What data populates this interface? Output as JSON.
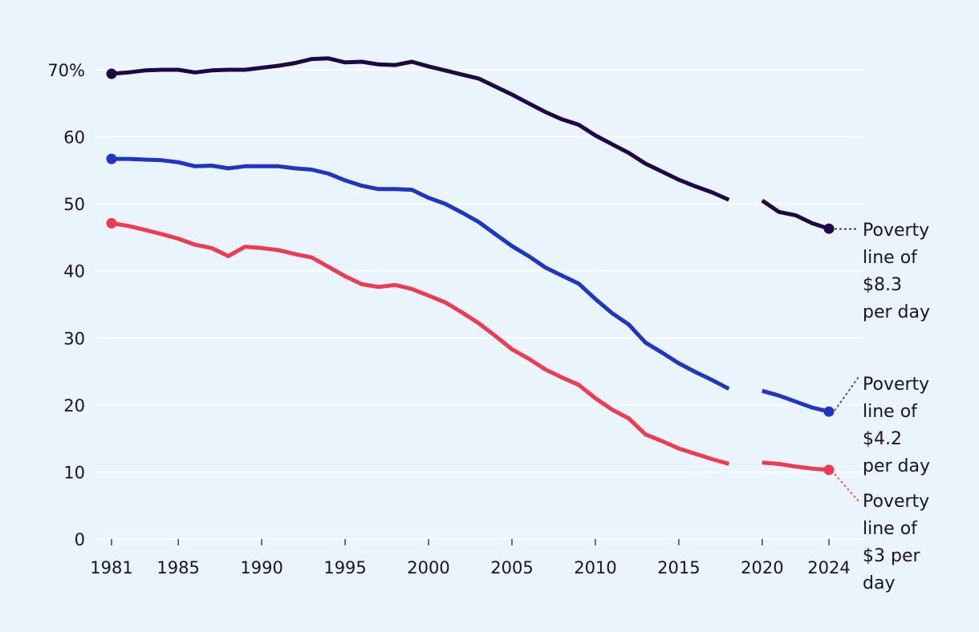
{
  "chart_data": {
    "type": "line",
    "x_ticks": [
      1981,
      1985,
      1990,
      1995,
      2000,
      2005,
      2010,
      2015,
      2020,
      2024
    ],
    "y_ticks": [
      {
        "value": 0,
        "label": "0"
      },
      {
        "value": 10,
        "label": "10"
      },
      {
        "value": 20,
        "label": "20"
      },
      {
        "value": 30,
        "label": "30"
      },
      {
        "value": 40,
        "label": "40"
      },
      {
        "value": 50,
        "label": "50"
      },
      {
        "value": 60,
        "label": "60"
      },
      {
        "value": 70,
        "label": "70%"
      }
    ],
    "xlim": [
      1981,
      2024
    ],
    "ylim": [
      0,
      70
    ],
    "grid": "horizontal",
    "series": [
      {
        "name": "Poverty line of $8.3 per day",
        "label_lines": [
          "Poverty",
          "line of",
          "$8.3",
          "per day"
        ],
        "color": "#200548",
        "segments": [
          [
            [
              1981,
              69.4
            ],
            [
              1982,
              69.6
            ],
            [
              1983,
              69.9
            ],
            [
              1984,
              70.0
            ],
            [
              1985,
              70.0
            ],
            [
              1986,
              69.6
            ],
            [
              1987,
              69.9
            ],
            [
              1988,
              70.0
            ],
            [
              1989,
              70.0
            ],
            [
              1990,
              70.3
            ],
            [
              1991,
              70.6
            ],
            [
              1992,
              71.0
            ],
            [
              1993,
              71.6
            ],
            [
              1994,
              71.7
            ],
            [
              1995,
              71.1
            ],
            [
              1996,
              71.2
            ],
            [
              1997,
              70.8
            ],
            [
              1998,
              70.7
            ],
            [
              1999,
              71.2
            ],
            [
              2000,
              70.5
            ],
            [
              2001,
              69.9
            ],
            [
              2002,
              69.3
            ],
            [
              2003,
              68.7
            ],
            [
              2004,
              67.5
            ],
            [
              2005,
              66.3
            ],
            [
              2006,
              65.0
            ],
            [
              2007,
              63.7
            ],
            [
              2008,
              62.6
            ],
            [
              2009,
              61.8
            ],
            [
              2010,
              60.2
            ],
            [
              2011,
              58.9
            ],
            [
              2012,
              57.6
            ],
            [
              2013,
              56.0
            ],
            [
              2014,
              54.8
            ],
            [
              2015,
              53.6
            ],
            [
              2016,
              52.6
            ],
            [
              2017,
              51.7
            ],
            [
              2018,
              50.6
            ]
          ],
          [
            [
              2020,
              50.5
            ],
            [
              2021,
              48.8
            ],
            [
              2022,
              48.3
            ],
            [
              2023,
              47.1
            ],
            [
              2024,
              46.3
            ]
          ]
        ]
      },
      {
        "name": "Poverty line of $4.2 per day",
        "label_lines": [
          "Poverty",
          "line of",
          "$4.2",
          "per day"
        ],
        "color": "#1f35c8",
        "segments": [
          [
            [
              1981,
              56.7
            ],
            [
              1982,
              56.7
            ],
            [
              1983,
              56.6
            ],
            [
              1984,
              56.5
            ],
            [
              1985,
              56.2
            ],
            [
              1986,
              55.6
            ],
            [
              1987,
              55.7
            ],
            [
              1988,
              55.3
            ],
            [
              1989,
              55.6
            ],
            [
              1990,
              55.6
            ],
            [
              1991,
              55.6
            ],
            [
              1992,
              55.3
            ],
            [
              1993,
              55.1
            ],
            [
              1994,
              54.5
            ],
            [
              1995,
              53.5
            ],
            [
              1996,
              52.7
            ],
            [
              1997,
              52.2
            ],
            [
              1998,
              52.2
            ],
            [
              1999,
              52.1
            ],
            [
              2000,
              50.9
            ],
            [
              2001,
              50.0
            ],
            [
              2002,
              48.7
            ],
            [
              2003,
              47.3
            ],
            [
              2004,
              45.5
            ],
            [
              2005,
              43.7
            ],
            [
              2006,
              42.2
            ],
            [
              2007,
              40.5
            ],
            [
              2008,
              39.3
            ],
            [
              2009,
              38.1
            ],
            [
              2010,
              35.8
            ],
            [
              2011,
              33.7
            ],
            [
              2012,
              32.0
            ],
            [
              2013,
              29.3
            ],
            [
              2014,
              27.8
            ],
            [
              2015,
              26.2
            ],
            [
              2016,
              24.9
            ],
            [
              2017,
              23.7
            ],
            [
              2018,
              22.4
            ]
          ],
          [
            [
              2020,
              22.1
            ],
            [
              2021,
              21.4
            ],
            [
              2022,
              20.5
            ],
            [
              2023,
              19.6
            ],
            [
              2024,
              19.0
            ]
          ]
        ]
      },
      {
        "name": "Poverty line of $3 per day",
        "label_lines": [
          "Poverty",
          "line of",
          "$3 per",
          "day"
        ],
        "color": "#f03a4f",
        "segments": [
          [
            [
              1981,
              47.1
            ],
            [
              1982,
              46.7
            ],
            [
              1983,
              46.1
            ],
            [
              1984,
              45.5
            ],
            [
              1985,
              44.8
            ],
            [
              1986,
              43.9
            ],
            [
              1987,
              43.4
            ],
            [
              1988,
              42.2
            ],
            [
              1989,
              43.6
            ],
            [
              1990,
              43.4
            ],
            [
              1991,
              43.1
            ],
            [
              1992,
              42.5
            ],
            [
              1993,
              42.0
            ],
            [
              1994,
              40.6
            ],
            [
              1995,
              39.2
            ],
            [
              1996,
              38.0
            ],
            [
              1997,
              37.6
            ],
            [
              1998,
              37.9
            ],
            [
              1999,
              37.3
            ],
            [
              2000,
              36.3
            ],
            [
              2001,
              35.3
            ],
            [
              2002,
              33.8
            ],
            [
              2003,
              32.2
            ],
            [
              2004,
              30.3
            ],
            [
              2005,
              28.3
            ],
            [
              2006,
              26.9
            ],
            [
              2007,
              25.3
            ],
            [
              2008,
              24.1
            ],
            [
              2009,
              23.0
            ],
            [
              2010,
              21.0
            ],
            [
              2011,
              19.3
            ],
            [
              2012,
              18.0
            ],
            [
              2013,
              15.6
            ],
            [
              2014,
              14.6
            ],
            [
              2015,
              13.5
            ],
            [
              2016,
              12.7
            ],
            [
              2017,
              11.9
            ],
            [
              2018,
              11.2
            ]
          ],
          [
            [
              2020,
              11.4
            ],
            [
              2021,
              11.2
            ],
            [
              2022,
              10.8
            ],
            [
              2023,
              10.5
            ],
            [
              2024,
              10.3
            ]
          ]
        ]
      }
    ]
  }
}
